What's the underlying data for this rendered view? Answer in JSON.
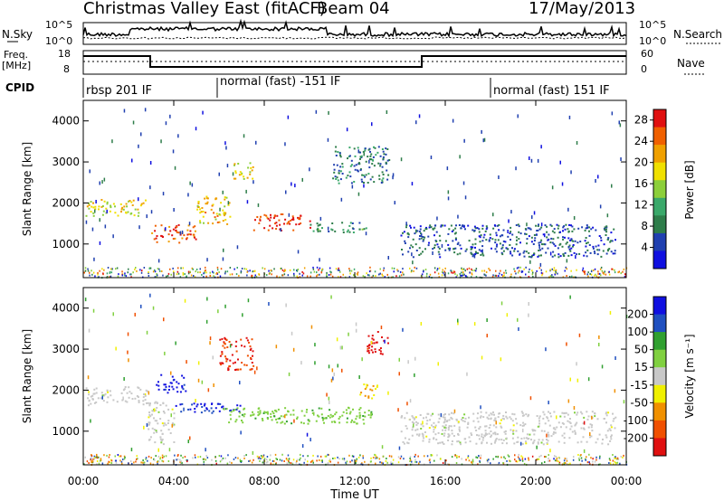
{
  "header": {
    "title": "Christmas Valley East (fitACF)",
    "beam": "Beam 04",
    "date": "17/May/2013"
  },
  "noise_panel": {
    "left_label": "N.Sky",
    "left_ticks": [
      "10^5",
      "10^0"
    ],
    "right_ticks": [
      "10^5",
      "10^0"
    ],
    "right_label": "N.Search"
  },
  "freq_panel": {
    "left_label_1": "Freq.",
    "left_label_2": "[MHz]",
    "left_ticks": [
      "18",
      "8"
    ],
    "right_ticks": [
      "60",
      "0"
    ],
    "right_label": "Nave"
  },
  "cpid": {
    "label": "CPID",
    "segments": [
      {
        "label": "rbsp 201 IF",
        "start_hour": 0
      },
      {
        "label": "normal (fast) -151 IF",
        "start_hour": 6
      },
      {
        "label": "normal (fast) 151 IF",
        "start_hour": 18
      }
    ]
  },
  "colors": {
    "power": [
      "#1010e0",
      "#2040b0",
      "#2e7d4a",
      "#3aa86a",
      "#8ccf3a",
      "#f0e000",
      "#f0a000",
      "#f06000",
      "#e01010"
    ],
    "velocity": [
      "#1010e0",
      "#2050c0",
      "#30a030",
      "#80d040",
      "#c8c8c8",
      "#f0f000",
      "#f09000",
      "#f05000",
      "#e01010"
    ],
    "noise_line": "#000000"
  },
  "chart_data": [
    {
      "type": "heatmap",
      "panel": "power",
      "ylabel": "Slant Range [km]",
      "xlabel": "Time UT",
      "xlim": [
        0,
        24
      ],
      "ylim": [
        180,
        4500
      ],
      "x_ticks": [
        "00:00",
        "04:00",
        "08:00",
        "12:00",
        "16:00",
        "20:00",
        "00:00"
      ],
      "y_ticks": [
        "1000",
        "2000",
        "3000",
        "4000"
      ],
      "colorbar": {
        "label": "Power [dB]",
        "ticks": [
          "4",
          "8",
          "12",
          "16",
          "20",
          "24",
          "28"
        ],
        "range": [
          0,
          30
        ]
      },
      "features": [
        {
          "t0": 0.1,
          "t1": 2.8,
          "range0": 1700,
          "range1": 2100,
          "value": 18
        },
        {
          "t0": 3.0,
          "t1": 5.0,
          "range0": 1050,
          "range1": 1500,
          "value": 26
        },
        {
          "t0": 5.0,
          "t1": 6.5,
          "range0": 1500,
          "range1": 2200,
          "value": 20
        },
        {
          "t0": 6.5,
          "t1": 7.5,
          "range0": 2600,
          "range1": 3000,
          "value": 18
        },
        {
          "t0": 7.5,
          "t1": 10.0,
          "range0": 1350,
          "range1": 1750,
          "value": 27
        },
        {
          "t0": 10.0,
          "t1": 12.5,
          "range0": 1300,
          "range1": 1550,
          "value": 10
        },
        {
          "t0": 11.0,
          "t1": 13.5,
          "range0": 2500,
          "range1": 3400,
          "value": 8
        },
        {
          "t0": 14.0,
          "t1": 23.5,
          "range0": 700,
          "range1": 1500,
          "value": 6
        }
      ]
    },
    {
      "type": "heatmap",
      "panel": "velocity",
      "ylabel": "Slant Range [km]",
      "xlabel": "Time UT",
      "xlim": [
        0,
        24
      ],
      "ylim": [
        180,
        4500
      ],
      "x_ticks": [
        "00:00",
        "04:00",
        "08:00",
        "12:00",
        "16:00",
        "20:00",
        "00:00"
      ],
      "y_ticks": [
        "1000",
        "2000",
        "3000",
        "4000"
      ],
      "colorbar": {
        "label": "Velocity [m s⁻¹]",
        "ticks": [
          "200",
          "100",
          "50",
          "15",
          "-15",
          "-50",
          "-100",
          "-200"
        ],
        "range": [
          -250,
          250
        ]
      },
      "features": [
        {
          "t0": 0.1,
          "t1": 2.8,
          "range0": 1650,
          "range1": 2100,
          "value": 0
        },
        {
          "t0": 2.8,
          "t1": 4.0,
          "range0": 700,
          "range1": 1750,
          "value": 0
        },
        {
          "t0": 3.2,
          "t1": 4.5,
          "range0": 1950,
          "range1": 2400,
          "value": 220
        },
        {
          "t0": 4.0,
          "t1": 7.0,
          "range0": 1450,
          "range1": 1700,
          "value": 200
        },
        {
          "t0": 6.0,
          "t1": 7.5,
          "range0": 2500,
          "range1": 3300,
          "value": -200
        },
        {
          "t0": 6.0,
          "t1": 12.8,
          "range0": 1200,
          "range1": 1600,
          "value": 60
        },
        {
          "t0": 12.5,
          "t1": 13.5,
          "range0": 2900,
          "range1": 3500,
          "value": -220
        },
        {
          "t0": 12.2,
          "t1": 13.0,
          "range0": 1800,
          "range1": 2200,
          "value": -80
        },
        {
          "t0": 14.0,
          "t1": 23.5,
          "range0": 700,
          "range1": 1500,
          "value": 0
        }
      ]
    }
  ]
}
